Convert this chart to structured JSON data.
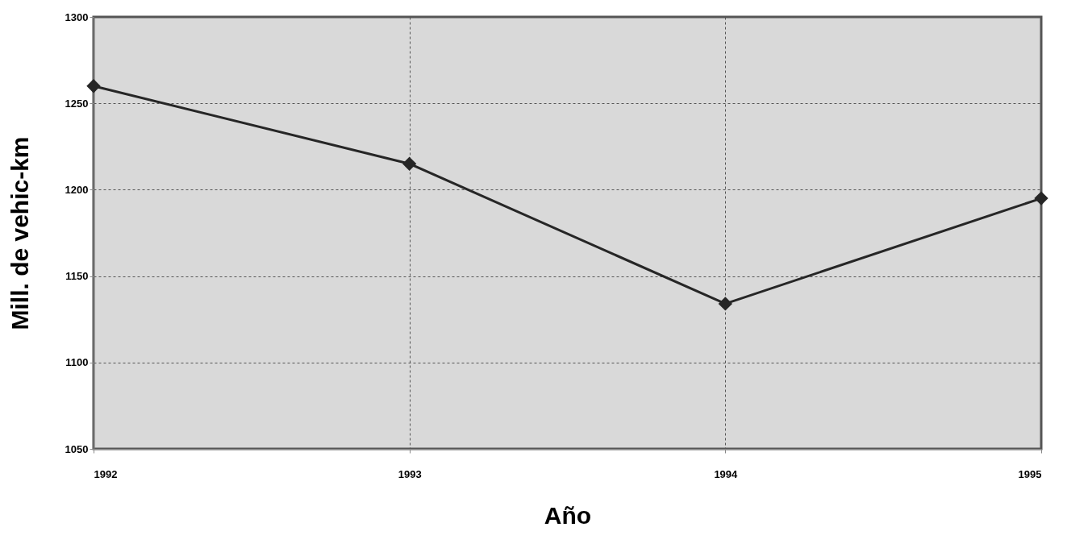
{
  "chart_data": {
    "type": "line",
    "xlabel": "Año",
    "ylabel": "Mill. de vehic-km",
    "x": [
      1992,
      1993,
      1994,
      1995
    ],
    "series": [
      {
        "color": "#262626",
        "values": [
          1260,
          1215,
          1134,
          1195
        ]
      }
    ],
    "xlim": [
      1992,
      1995
    ],
    "xticks": [
      1992,
      1993,
      1994,
      1995
    ],
    "ylim": [
      1050,
      1300
    ],
    "yticks": [
      1050,
      1100,
      1150,
      1200,
      1250,
      1300
    ],
    "grid": true,
    "marker": "diamond",
    "line_style": "solid",
    "legend": false
  }
}
